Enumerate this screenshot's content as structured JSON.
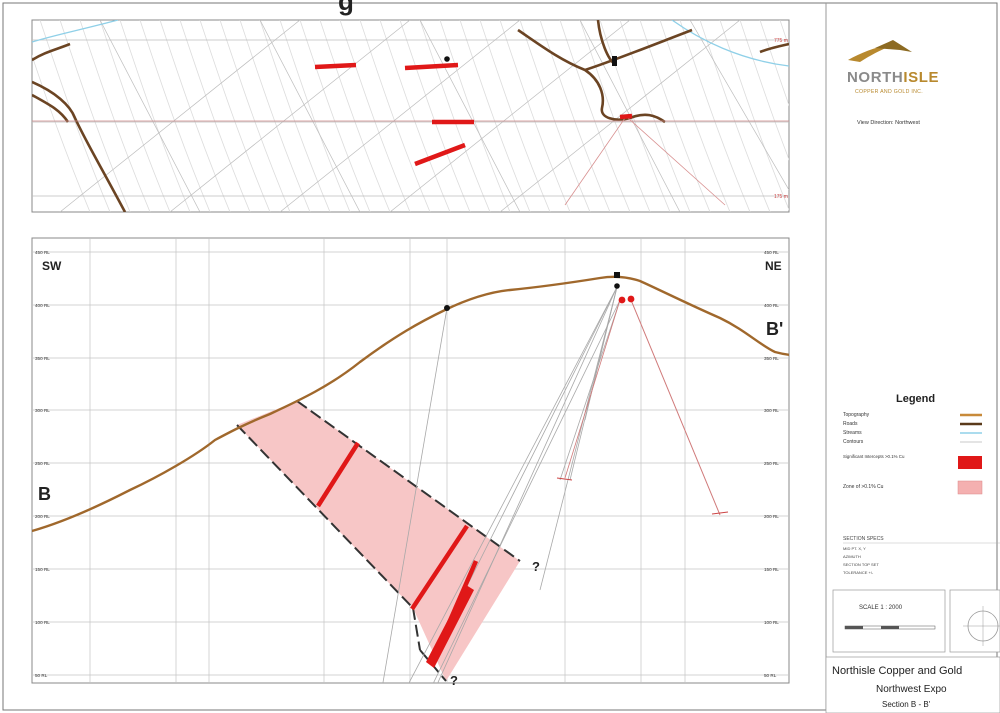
{
  "header_fragment": "g",
  "plan_view": {
    "elevation_top": "775 m",
    "elevation_bottom": "175 m"
  },
  "section": {
    "sw_label": "SW",
    "ne_label": "NE",
    "b_label": "B",
    "b_prime_label": "B'",
    "question_marks": [
      "?",
      "?",
      "?"
    ],
    "elevation_labels": [
      "450 RL",
      "400 RL",
      "350 RL",
      "300 RL",
      "250 RL",
      "200 RL",
      "150 RL",
      "100 RL",
      "50 RL"
    ]
  },
  "sidebar": {
    "logo_word_dark": "NORTH",
    "logo_word_accent": "ISLE",
    "logo_sub": "COPPER AND GOLD INC.",
    "view_direction": "View Direction: Northwest",
    "legend_title": "Legend",
    "legend_items": [
      {
        "label": "Topography",
        "color": "#c88a3a"
      },
      {
        "label": "Roads",
        "color": "#5a3a1a"
      },
      {
        "label": "Streams",
        "color": "#8fd0e8"
      },
      {
        "label": "Contours",
        "color": "#d8d8d8"
      },
      {
        "label": "Significant Intercepts >0.1% Cu",
        "color": "#e01818"
      },
      {
        "label": "Zone of >0.1% Cu",
        "color": "#f4b0b0"
      }
    ],
    "specs_title": "SECTION SPECS",
    "specs_rows": [
      "MID PT. X, Y",
      "AZIMUTH",
      "SECTION TOP SET",
      "TOLERANCE +/-"
    ],
    "scale_label": "SCALE 1 : 2000",
    "title_1": "Northisle Copper and Gold",
    "title_2": "Northwest Expo",
    "title_3": "Section B - B'"
  },
  "colors": {
    "topo": "#a0682c",
    "road": "#6b4423",
    "stream": "#8fd0e8",
    "intercept": "#e01818",
    "zone": "#f7c6c6",
    "accent_gold": "#b8892e",
    "logo_grey": "#8a8a8a"
  }
}
